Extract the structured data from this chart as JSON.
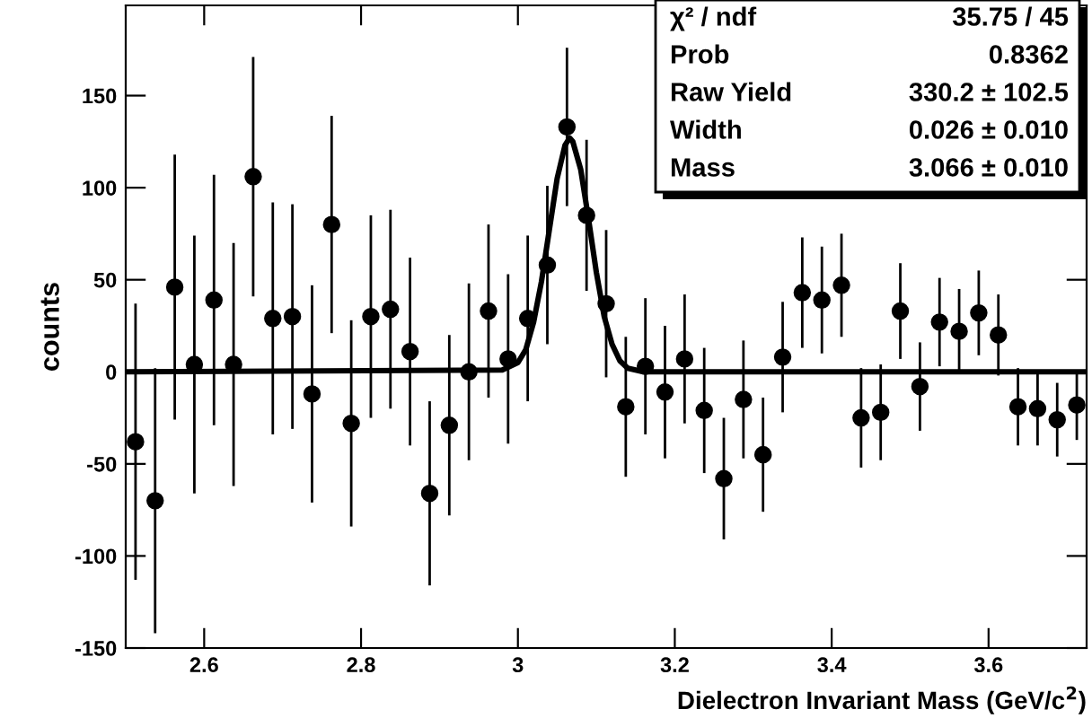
{
  "chart_data": {
    "type": "scatter",
    "xlabel": "Dielectron Invariant Mass (GeV/c$^{2}$)",
    "ylabel": "counts",
    "xlim": [
      2.5,
      3.725
    ],
    "ylim": [
      -150,
      199
    ],
    "xticks": [
      2.6,
      2.8,
      3,
      3.2,
      3.4,
      3.6
    ],
    "yticks": [
      -150,
      -100,
      -50,
      0,
      50,
      100,
      150
    ],
    "grid": false,
    "legend": false,
    "annotations": [
      "χ² / ndf",
      "35.75 / 45",
      "Prob",
      "0.8362",
      "Raw Yield",
      "330.2 ± 102.5",
      "Width",
      "0.026 ± 0.010",
      "Mass",
      "3.066 ± 0.010"
    ],
    "series": [
      {
        "marker": "circle",
        "color": "#000000",
        "x": [
          2.5125,
          2.5375,
          2.5625,
          2.5875,
          2.6125,
          2.6375,
          2.6625,
          2.6875,
          2.7125,
          2.7375,
          2.7625,
          2.7875,
          2.8125,
          2.8375,
          2.8625,
          2.8875,
          2.9125,
          2.9375,
          2.9625,
          2.9875,
          3.0125,
          3.0375,
          3.0625,
          3.0875,
          3.1125,
          3.1375,
          3.1625,
          3.1875,
          3.2125,
          3.2375,
          3.2625,
          3.2875,
          3.3125,
          3.3375,
          3.3625,
          3.3875,
          3.4125,
          3.4375,
          3.4625,
          3.4875,
          3.5125,
          3.5375,
          3.5625,
          3.5875,
          3.6125,
          3.6375,
          3.6625,
          3.6875,
          3.7125
        ],
        "values": [
          -38,
          -70,
          46,
          4,
          39,
          4,
          106,
          29,
          30,
          -12,
          80,
          -28,
          30,
          34,
          11,
          -66,
          -29,
          0,
          33,
          7,
          29,
          58,
          133,
          85,
          37,
          -19,
          3,
          -11,
          7,
          -21,
          -58,
          -15,
          -45,
          8,
          43,
          39,
          47,
          -25,
          -22,
          33,
          -8,
          27,
          22,
          32,
          20,
          -19,
          -20,
          -26,
          -18
        ],
        "errors": [
          75,
          72,
          72,
          70,
          68,
          66,
          65,
          63,
          61,
          59,
          59,
          56,
          55,
          54,
          51,
          50,
          49,
          48,
          47,
          46,
          45,
          43,
          43,
          41,
          40,
          38,
          37,
          36,
          35,
          34,
          33,
          32,
          31,
          30,
          30,
          29,
          28,
          27,
          26,
          26,
          24,
          24,
          23,
          23,
          22,
          21,
          20,
          20,
          19
        ]
      },
      {
        "type": "line",
        "marker": "none",
        "color": "#000000",
        "x": [
          2.5,
          2.98,
          3.0,
          3.01,
          3.02,
          3.03,
          3.04,
          3.05,
          3.06,
          3.066,
          3.07,
          3.08,
          3.09,
          3.1,
          3.11,
          3.12,
          3.13,
          3.14,
          3.16,
          3.725
        ],
        "values": [
          0,
          1,
          5,
          12,
          27,
          49,
          77,
          105,
          123,
          127,
          125,
          110,
          83,
          54,
          30,
          15,
          6,
          2,
          0,
          0
        ]
      }
    ]
  }
}
